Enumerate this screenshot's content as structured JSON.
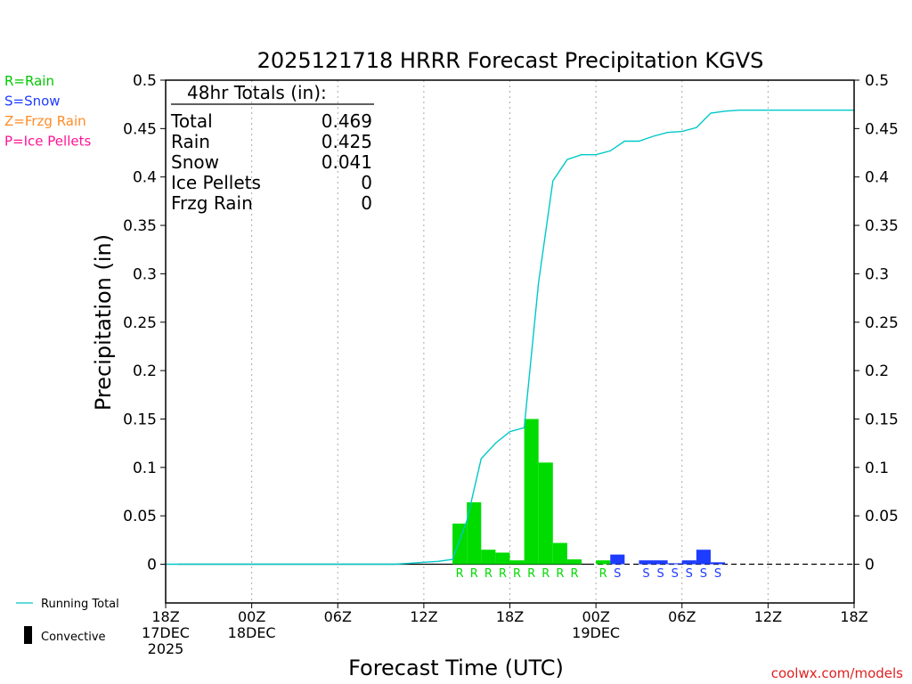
{
  "legend_left": [
    {
      "text": "R=Rain",
      "color": "#00c800"
    },
    {
      "text": "S=Snow",
      "color": "#1e3cff"
    },
    {
      "text": "Z=Frzg Rain",
      "color": "#ff8c28"
    },
    {
      "text": "P=Ice Pellets",
      "color": "#ff1493"
    }
  ],
  "totals_box": {
    "heading": "48hr Totals (in):",
    "rows": [
      {
        "label": "Total",
        "value": "0.469"
      },
      {
        "label": "Rain",
        "value": "0.425"
      },
      {
        "label": "Snow",
        "value": "0.041"
      },
      {
        "label": "Ice Pellets",
        "value": "0"
      },
      {
        "label": "Frzg Rain",
        "value": "0"
      }
    ]
  },
  "bottom_legend": {
    "running_total": "Running Total",
    "convective": "Convective"
  },
  "credit": "coolwx.com/models",
  "colors": {
    "rain": "#00dc00",
    "snow": "#1e3cff",
    "running_total": "#00c8c8",
    "frzg": "#ff8c28",
    "pellets": "#ff1493",
    "grid": "#aaaaaa",
    "credit": "#e02020"
  },
  "chart_data": {
    "type": "bar",
    "title": "2025121718 HRRR Forecast Precipitation KGVS",
    "xlabel": "Forecast Time (UTC)",
    "ylabel": "Precipitation (in)",
    "ylim": [
      -0.04,
      0.5
    ],
    "xlim": [
      0,
      48
    ],
    "grid": "vertical dotted",
    "y_ticks": [
      {
        "v": 0,
        "label": "0"
      },
      {
        "v": 0.05,
        "label": "0.05"
      },
      {
        "v": 0.1,
        "label": "0.1"
      },
      {
        "v": 0.15,
        "label": "0.15"
      },
      {
        "v": 0.2,
        "label": "0.2"
      },
      {
        "v": 0.25,
        "label": "0.25"
      },
      {
        "v": 0.3,
        "label": "0.3"
      },
      {
        "v": 0.35,
        "label": "0.35"
      },
      {
        "v": 0.4,
        "label": "0.4"
      },
      {
        "v": 0.45,
        "label": "0.45"
      },
      {
        "v": 0.5,
        "label": "0.5"
      }
    ],
    "x_ticks": [
      {
        "h": 0,
        "lines": [
          "18Z",
          "17DEC",
          "2025"
        ]
      },
      {
        "h": 6,
        "lines": [
          "00Z",
          "18DEC"
        ]
      },
      {
        "h": 12,
        "lines": [
          "06Z"
        ]
      },
      {
        "h": 18,
        "lines": [
          "12Z"
        ]
      },
      {
        "h": 24,
        "lines": [
          "18Z"
        ]
      },
      {
        "h": 30,
        "lines": [
          "00Z",
          "19DEC"
        ]
      },
      {
        "h": 36,
        "lines": [
          "06Z"
        ]
      },
      {
        "h": 42,
        "lines": [
          "12Z"
        ]
      },
      {
        "h": 48,
        "lines": [
          "18Z"
        ]
      }
    ],
    "bars": [
      {
        "h": 21,
        "value": 0.042,
        "type": "R"
      },
      {
        "h": 22,
        "value": 0.064,
        "type": "R"
      },
      {
        "h": 23,
        "value": 0.015,
        "type": "R"
      },
      {
        "h": 24,
        "value": 0.012,
        "type": "R"
      },
      {
        "h": 25,
        "value": 0.004,
        "type": "R"
      },
      {
        "h": 26,
        "value": 0.15,
        "type": "R"
      },
      {
        "h": 27,
        "value": 0.105,
        "type": "R"
      },
      {
        "h": 28,
        "value": 0.022,
        "type": "R"
      },
      {
        "h": 29,
        "value": 0.005,
        "type": "R"
      },
      {
        "h": 30,
        "value": 0.0,
        "type": ""
      },
      {
        "h": 31,
        "value": 0.004,
        "type": "R"
      },
      {
        "h": 32,
        "value": 0.01,
        "type": "S"
      },
      {
        "h": 33,
        "value": 0.0,
        "type": ""
      },
      {
        "h": 34,
        "value": 0.004,
        "type": "S"
      },
      {
        "h": 35,
        "value": 0.004,
        "type": "S"
      },
      {
        "h": 36,
        "value": 0.001,
        "type": "S"
      },
      {
        "h": 37,
        "value": 0.004,
        "type": "S"
      },
      {
        "h": 38,
        "value": 0.015,
        "type": "S"
      },
      {
        "h": 39,
        "value": 0.002,
        "type": "S"
      }
    ],
    "running_total": {
      "x": [
        0,
        16,
        17,
        18,
        19,
        20,
        21,
        22,
        23,
        24,
        25,
        26,
        27,
        28,
        29,
        30,
        31,
        32,
        33,
        34,
        35,
        36,
        37,
        38,
        39,
        40,
        48
      ],
      "y": [
        0,
        0,
        0.001,
        0.002,
        0.003,
        0.005,
        0.045,
        0.109,
        0.125,
        0.137,
        0.141,
        0.291,
        0.396,
        0.418,
        0.423,
        0.423,
        0.427,
        0.437,
        0.437,
        0.442,
        0.446,
        0.447,
        0.451,
        0.466,
        0.468,
        0.469,
        0.469
      ]
    }
  }
}
